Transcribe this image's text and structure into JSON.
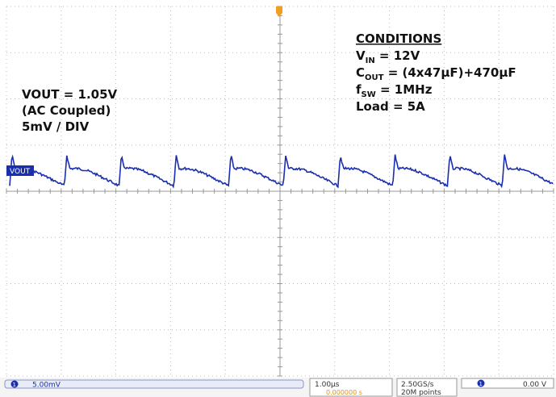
{
  "conditions": {
    "heading": "CONDITIONS",
    "vin": {
      "symbol": "V",
      "subscript": "IN",
      "text": " = 12V"
    },
    "cout": {
      "symbol": "C",
      "subscript": "OUT",
      "text": " = (4x47µF)+470µF"
    },
    "fsw": {
      "symbol": "f",
      "subscript": "SW",
      "text": " = 1MHz"
    },
    "load": "Load = 5A"
  },
  "channel_note": [
    "VOUT = 1.05V",
    "(AC Coupled)",
    "5mV / DIV"
  ],
  "trace_label": "VOUT",
  "status_bar": {
    "channel": "1",
    "scale": "5.00mV",
    "timebase": "1.00µs",
    "delay": "0.000000 s",
    "sample_rate": "2.50GS/s",
    "points": "20M points",
    "trigger_channel": "1",
    "trigger_level": "0.00 V"
  }
}
